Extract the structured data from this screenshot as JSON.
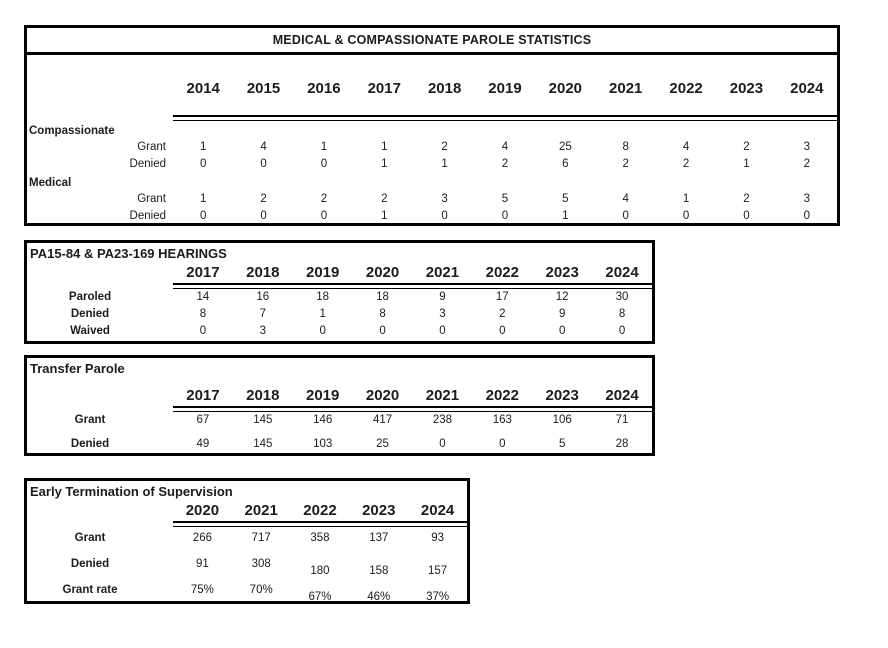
{
  "colors": {
    "border": "#000000",
    "text": "#1c1c1c",
    "background": "#ffffff"
  },
  "tables": [
    {
      "title": "MEDICAL & COMPASSIONATE PAROLE STATISTICS",
      "years": [
        "2014",
        "2015",
        "2016",
        "2017",
        "2018",
        "2019",
        "2020",
        "2021",
        "2022",
        "2023",
        "2024"
      ],
      "rows": [
        {
          "type": "category",
          "label": "Compassionate"
        },
        {
          "type": "data",
          "label": "Grant",
          "values": [
            "1",
            "4",
            "1",
            "1",
            "2",
            "4",
            "25",
            "8",
            "4",
            "2",
            "3"
          ]
        },
        {
          "type": "data",
          "label": "Denied",
          "values": [
            "0",
            "0",
            "0",
            "1",
            "1",
            "2",
            "6",
            "2",
            "2",
            "1",
            "2"
          ]
        },
        {
          "type": "category",
          "label": "Medical"
        },
        {
          "type": "data",
          "label": "Grant",
          "values": [
            "1",
            "2",
            "2",
            "2",
            "3",
            "5",
            "5",
            "4",
            "1",
            "2",
            "3"
          ]
        },
        {
          "type": "data",
          "label": "Denied",
          "values": [
            "0",
            "0",
            "0",
            "1",
            "0",
            "0",
            "1",
            "0",
            "0",
            "0",
            "0"
          ]
        }
      ]
    },
    {
      "title": "PA15-84 & PA23-169 HEARINGS",
      "years": [
        "2017",
        "2018",
        "2019",
        "2020",
        "2021",
        "2022",
        "2023",
        "2024"
      ],
      "rows": [
        {
          "type": "data",
          "label": "Paroled",
          "values": [
            "14",
            "16",
            "18",
            "18",
            "9",
            "17",
            "12",
            "30"
          ]
        },
        {
          "type": "data",
          "label": "Denied",
          "values": [
            "8",
            "7",
            "1",
            "8",
            "3",
            "2",
            "9",
            "8"
          ]
        },
        {
          "type": "data",
          "label": "Waived",
          "values": [
            "0",
            "3",
            "0",
            "0",
            "0",
            "0",
            "0",
            "0"
          ]
        }
      ]
    },
    {
      "title": "Transfer Parole",
      "years": [
        "2017",
        "2018",
        "2019",
        "2020",
        "2021",
        "2022",
        "2023",
        "2024"
      ],
      "rows": [
        {
          "type": "data",
          "label": "Grant",
          "values": [
            "67",
            "145",
            "146",
            "417",
            "238",
            "163",
            "106",
            "71"
          ]
        },
        {
          "type": "data",
          "label": "Denied",
          "values": [
            "49",
            "145",
            "103",
            "25",
            "0",
            "0",
            "5",
            "28"
          ]
        }
      ]
    },
    {
      "title": "Early Termination of Supervision",
      "years": [
        "2020",
        "2021",
        "2022",
        "2023",
        "2024"
      ],
      "rows": [
        {
          "type": "data",
          "label": "Grant",
          "values": [
            "266",
            "717",
            "358",
            "137",
            "93"
          ]
        },
        {
          "type": "data",
          "label": "Denied",
          "values": [
            "91",
            "308",
            "180",
            "158",
            "157"
          ]
        },
        {
          "type": "data",
          "label": "Grant rate",
          "values": [
            "75%",
            "70%",
            "67%",
            "46%",
            "37%"
          ]
        }
      ]
    }
  ]
}
